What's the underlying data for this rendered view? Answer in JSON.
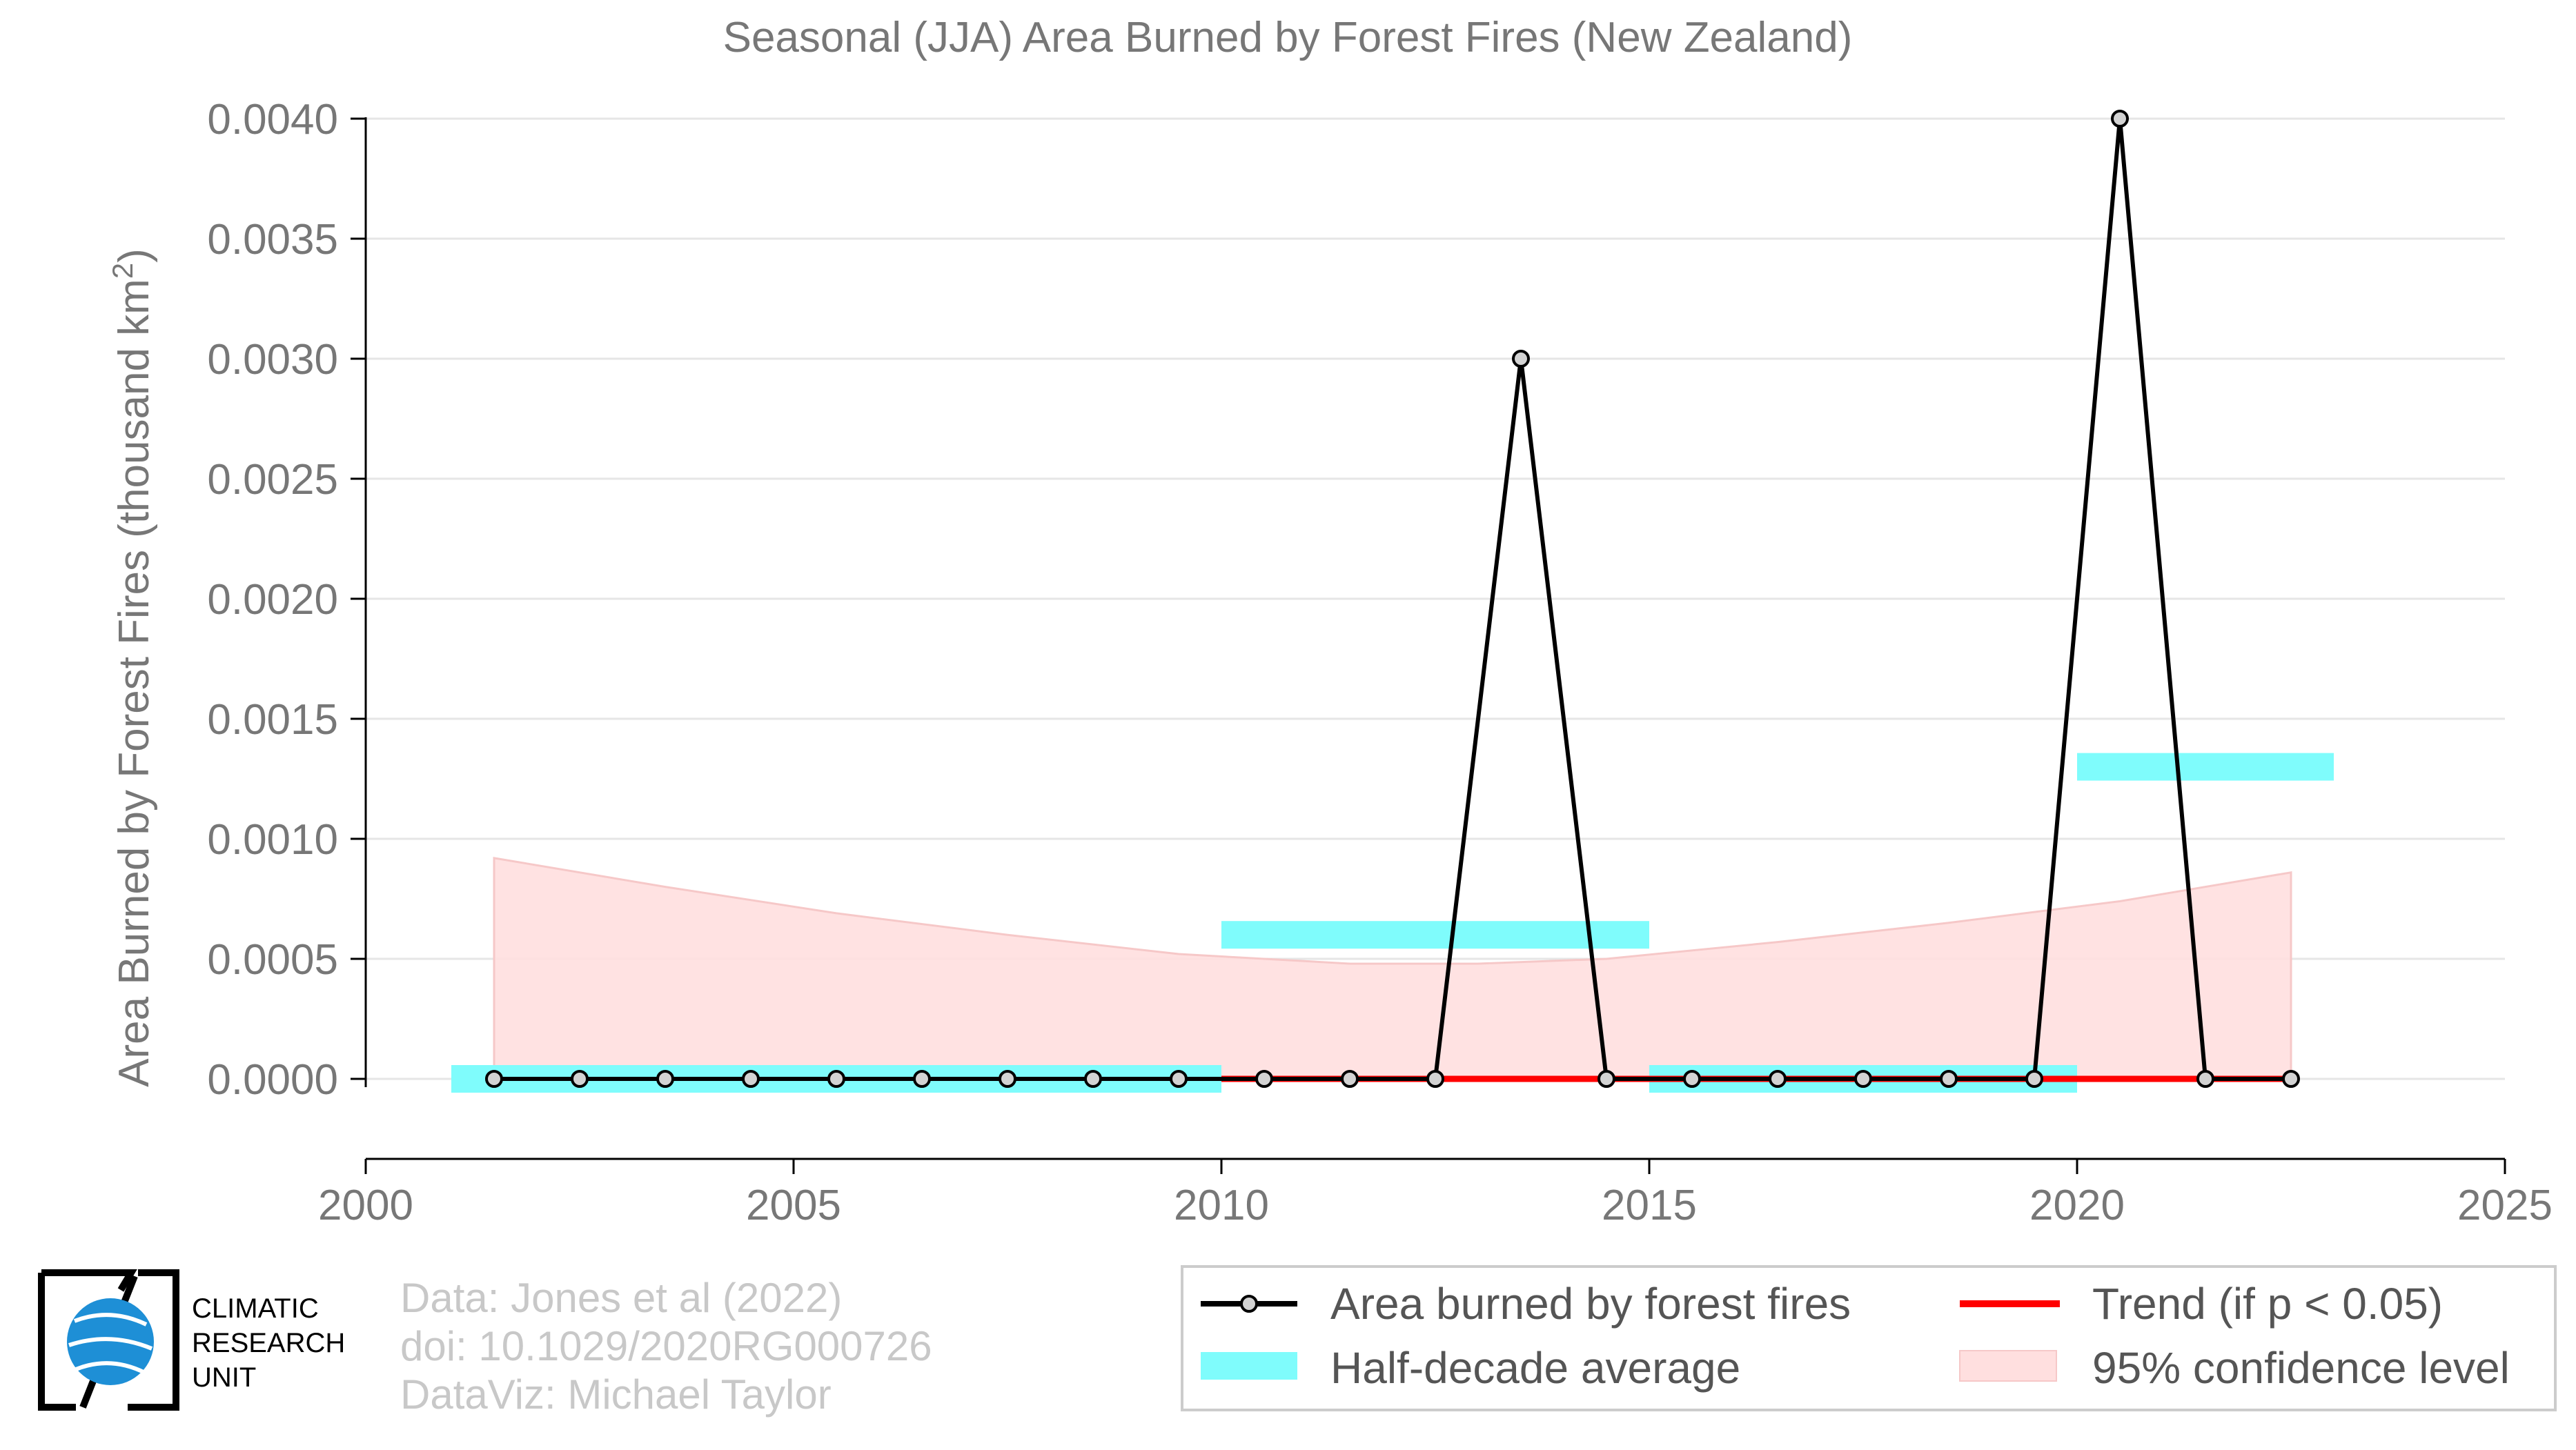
{
  "chart_data": {
    "type": "line",
    "title": "Seasonal (JJA) Area Burned by Forest Fires (New Zealand)",
    "ylabel": "Area Burned by Forest Fires (thousand km²)",
    "xlabel": "",
    "xlim": [
      2000,
      2025
    ],
    "ylim": [
      -0.0002,
      0.004
    ],
    "xticks": [
      2000,
      2005,
      2010,
      2015,
      2020,
      2025
    ],
    "xtick_labels": [
      "2000",
      "2005",
      "2010",
      "2015",
      "2020",
      "2025"
    ],
    "yticks": [
      0.0,
      0.0005,
      0.001,
      0.0015,
      0.002,
      0.0025,
      0.003,
      0.0035,
      0.004
    ],
    "ytick_labels": [
      "0.0000",
      "0.0005",
      "0.0010",
      "0.0015",
      "0.0020",
      "0.0025",
      "0.0030",
      "0.0035",
      "0.0040"
    ],
    "grid": true,
    "series": [
      {
        "name": "Area burned by forest fires",
        "color": "#000000",
        "x": [
          2001.5,
          2002.5,
          2003.5,
          2004.5,
          2005.5,
          2006.5,
          2007.5,
          2008.5,
          2009.5,
          2010.5,
          2011.5,
          2012.5,
          2013.5,
          2014.5,
          2015.5,
          2016.5,
          2017.5,
          2018.5,
          2019.5,
          2020.5,
          2021.5,
          2022.5
        ],
        "values": [
          0,
          0,
          0,
          0,
          0,
          0,
          0,
          0,
          0,
          0,
          0,
          0,
          0.003,
          0,
          0,
          0,
          0,
          0,
          0,
          0.004,
          0,
          0
        ]
      },
      {
        "name": "Trend (if p < 0.05)",
        "color": "#ff0000",
        "x": [
          2010.0,
          2022.5
        ],
        "values": [
          0,
          0
        ]
      }
    ],
    "half_decade_average": {
      "name": "Half-decade average",
      "color": "#7ffcfc",
      "segments": [
        {
          "x0": 2001.0,
          "x1": 2010.0,
          "value": 0.0
        },
        {
          "x0": 2010.0,
          "x1": 2015.0,
          "value": 0.0006
        },
        {
          "x0": 2015.0,
          "x1": 2020.0,
          "value": 0.0
        },
        {
          "x0": 2020.0,
          "x1": 2023.0,
          "value": 0.0013
        }
      ]
    },
    "confidence_band": {
      "name": "95% confidence level",
      "color": "#ffdfdf",
      "x": [
        2001.5,
        2003.5,
        2005.5,
        2007.5,
        2009.5,
        2011.5,
        2013.0,
        2014.5,
        2016.5,
        2018.5,
        2020.5,
        2022.5
      ],
      "upper": [
        0.00092,
        0.0008,
        0.00069,
        0.0006,
        0.00052,
        0.00048,
        0.00048,
        0.0005,
        0.00057,
        0.00065,
        0.00074,
        0.00086
      ],
      "lower": [
        0,
        0,
        0,
        0,
        0,
        0,
        0,
        0,
        0,
        0,
        0,
        0
      ]
    },
    "legend_position": "bottom-right"
  },
  "legend": {
    "items": [
      {
        "label": "Area burned by forest fires",
        "type": "line-marker",
        "color": "#000000"
      },
      {
        "label": "Trend (if p < 0.05)",
        "type": "line",
        "color": "#ff0000"
      },
      {
        "label": "Half-decade average",
        "type": "patch",
        "color": "#7ffcfc"
      },
      {
        "label": "95% confidence level",
        "type": "patch",
        "color": "#ffdfdf"
      }
    ]
  },
  "footer": {
    "line1": "Data: Jones et al (2022)",
    "line2": "doi: 10.1029/2020RG000726",
    "line3": "DataViz: Michael Taylor"
  },
  "logo": {
    "line1": "CLIMATIC",
    "line2": "RESEARCH",
    "line3": "UNIT"
  }
}
